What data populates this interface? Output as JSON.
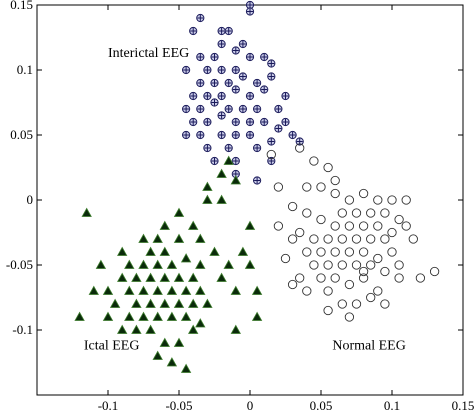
{
  "chart_data": {
    "type": "scatter",
    "xlim": [
      -0.15,
      0.15
    ],
    "ylim": [
      -0.15,
      0.15
    ],
    "xticks": [
      -0.1,
      -0.05,
      0,
      0.05,
      0.1,
      0.15
    ],
    "yticks": [
      -0.1,
      -0.05,
      0,
      0.05,
      0.1,
      0.15
    ],
    "xtick_labels": [
      "-0.1",
      "-0.05",
      "0",
      "0.05",
      "0.1",
      "0.15"
    ],
    "ytick_labels": [
      "-0.1",
      "-0.05",
      "0",
      "0.05",
      "0.1",
      "0.15"
    ],
    "grid": false,
    "annotations": [
      {
        "text": "Interictal EEG",
        "x": -0.1,
        "y": 0.11
      },
      {
        "text": "Ictal EEG",
        "x": -0.117,
        "y": -0.115
      },
      {
        "text": "Normal EEG",
        "x": 0.058,
        "y": -0.115
      }
    ],
    "series": [
      {
        "marker": "circle-plus",
        "color": "#2a2a78",
        "points": [
          [
            -0.035,
            0.14
          ],
          [
            -0.015,
            0.13
          ],
          [
            0.0,
            0.15
          ],
          [
            0.0,
            0.145
          ],
          [
            -0.02,
            0.12
          ],
          [
            -0.01,
            0.115
          ],
          [
            -0.005,
            0.12
          ],
          [
            -0.025,
            0.11
          ],
          [
            -0.03,
            0.1
          ],
          [
            -0.02,
            0.1
          ],
          [
            -0.01,
            0.1
          ],
          [
            0.0,
            0.11
          ],
          [
            0.01,
            0.11
          ],
          [
            0.015,
            0.105
          ],
          [
            -0.035,
            0.09
          ],
          [
            -0.025,
            0.09
          ],
          [
            -0.015,
            0.09
          ],
          [
            -0.005,
            0.095
          ],
          [
            0.005,
            0.09
          ],
          [
            0.015,
            0.095
          ],
          [
            -0.04,
            0.08
          ],
          [
            -0.03,
            0.08
          ],
          [
            -0.02,
            0.08
          ],
          [
            -0.01,
            0.085
          ],
          [
            0.0,
            0.08
          ],
          [
            0.01,
            0.085
          ],
          [
            -0.045,
            0.07
          ],
          [
            -0.035,
            0.07
          ],
          [
            -0.025,
            0.075
          ],
          [
            -0.015,
            0.07
          ],
          [
            -0.005,
            0.07
          ],
          [
            0.005,
            0.07
          ],
          [
            -0.04,
            0.06
          ],
          [
            -0.03,
            0.06
          ],
          [
            -0.02,
            0.065
          ],
          [
            -0.01,
            0.06
          ],
          [
            0.0,
            0.06
          ],
          [
            0.01,
            0.06
          ],
          [
            -0.045,
            0.05
          ],
          [
            -0.035,
            0.05
          ],
          [
            -0.02,
            0.05
          ],
          [
            -0.01,
            0.05
          ],
          [
            0.0,
            0.05
          ],
          [
            0.02,
            0.055
          ],
          [
            -0.03,
            0.04
          ],
          [
            -0.015,
            0.04
          ],
          [
            0.005,
            0.04
          ],
          [
            0.015,
            0.045
          ],
          [
            -0.025,
            0.03
          ],
          [
            -0.01,
            0.03
          ],
          [
            0.02,
            0.07
          ],
          [
            0.025,
            0.06
          ],
          [
            0.03,
            0.05
          ],
          [
            0.035,
            0.045
          ],
          [
            0.025,
            0.08
          ],
          [
            -0.01,
            0.02
          ],
          [
            0.005,
            0.015
          ],
          [
            0.015,
            0.03
          ],
          [
            -0.045,
            0.1
          ],
          [
            -0.02,
            0.13
          ],
          [
            -0.04,
            0.13
          ],
          [
            -0.035,
            0.11
          ]
        ]
      },
      {
        "marker": "triangle",
        "color": "#0a3a0a",
        "points": [
          [
            -0.015,
            0.03
          ],
          [
            -0.02,
            0.02
          ],
          [
            -0.01,
            0.015
          ],
          [
            -0.03,
            0.01
          ],
          [
            -0.03,
            0.0
          ],
          [
            -0.05,
            -0.01
          ],
          [
            -0.04,
            -0.02
          ],
          [
            -0.035,
            -0.03
          ],
          [
            -0.05,
            -0.03
          ],
          [
            -0.06,
            -0.04
          ],
          [
            -0.07,
            -0.04
          ],
          [
            -0.045,
            -0.045
          ],
          [
            -0.055,
            -0.05
          ],
          [
            -0.065,
            -0.05
          ],
          [
            -0.075,
            -0.05
          ],
          [
            -0.085,
            -0.05
          ],
          [
            -0.09,
            -0.06
          ],
          [
            -0.08,
            -0.06
          ],
          [
            -0.07,
            -0.06
          ],
          [
            -0.06,
            -0.06
          ],
          [
            -0.05,
            -0.06
          ],
          [
            -0.04,
            -0.06
          ],
          [
            -0.085,
            -0.07
          ],
          [
            -0.075,
            -0.07
          ],
          [
            -0.065,
            -0.07
          ],
          [
            -0.055,
            -0.07
          ],
          [
            -0.045,
            -0.07
          ],
          [
            -0.035,
            -0.07
          ],
          [
            -0.08,
            -0.08
          ],
          [
            -0.07,
            -0.08
          ],
          [
            -0.06,
            -0.08
          ],
          [
            -0.05,
            -0.08
          ],
          [
            -0.04,
            -0.08
          ],
          [
            -0.03,
            -0.08
          ],
          [
            -0.075,
            -0.09
          ],
          [
            -0.065,
            -0.09
          ],
          [
            -0.055,
            -0.09
          ],
          [
            -0.045,
            -0.09
          ],
          [
            -0.035,
            -0.095
          ],
          [
            -0.1,
            -0.07
          ],
          [
            -0.105,
            -0.05
          ],
          [
            -0.11,
            -0.07
          ],
          [
            -0.1,
            -0.09
          ],
          [
            -0.09,
            -0.1
          ],
          [
            -0.08,
            -0.1
          ],
          [
            -0.07,
            -0.1
          ],
          [
            -0.06,
            -0.11
          ],
          [
            -0.05,
            -0.11
          ],
          [
            -0.04,
            -0.1
          ],
          [
            -0.02,
            -0.06
          ],
          [
            -0.01,
            -0.07
          ],
          [
            -0.015,
            -0.05
          ],
          [
            -0.005,
            -0.04
          ],
          [
            0.0,
            -0.05
          ],
          [
            0.005,
            -0.07
          ],
          [
            -0.025,
            -0.04
          ],
          [
            -0.035,
            -0.05
          ],
          [
            -0.06,
            -0.02
          ],
          [
            -0.065,
            -0.03
          ],
          [
            -0.075,
            -0.03
          ],
          [
            -0.09,
            -0.04
          ],
          [
            -0.095,
            -0.08
          ],
          [
            -0.085,
            -0.09
          ],
          [
            -0.065,
            -0.12
          ],
          [
            -0.055,
            -0.125
          ],
          [
            -0.045,
            -0.13
          ],
          [
            0.005,
            -0.09
          ],
          [
            -0.01,
            -0.1
          ],
          [
            -0.115,
            -0.01
          ],
          [
            -0.02,
            0.0
          ],
          [
            0.0,
            -0.02
          ],
          [
            -0.12,
            -0.09
          ]
        ]
      },
      {
        "marker": "circle-open",
        "color": "#444444",
        "points": [
          [
            0.035,
            0.04
          ],
          [
            0.045,
            0.03
          ],
          [
            0.055,
            0.025
          ],
          [
            0.05,
            0.01
          ],
          [
            0.06,
            0.005
          ],
          [
            0.07,
            0.0
          ],
          [
            0.08,
            0.005
          ],
          [
            0.09,
            0.0
          ],
          [
            0.1,
            0.0
          ],
          [
            0.065,
            -0.01
          ],
          [
            0.075,
            -0.01
          ],
          [
            0.085,
            -0.01
          ],
          [
            0.095,
            -0.01
          ],
          [
            0.105,
            -0.015
          ],
          [
            0.04,
            -0.01
          ],
          [
            0.05,
            -0.015
          ],
          [
            0.06,
            -0.02
          ],
          [
            0.07,
            -0.02
          ],
          [
            0.08,
            -0.02
          ],
          [
            0.09,
            -0.02
          ],
          [
            0.1,
            -0.025
          ],
          [
            0.11,
            -0.02
          ],
          [
            0.035,
            -0.025
          ],
          [
            0.045,
            -0.03
          ],
          [
            0.055,
            -0.03
          ],
          [
            0.065,
            -0.03
          ],
          [
            0.075,
            -0.03
          ],
          [
            0.085,
            -0.03
          ],
          [
            0.095,
            -0.03
          ],
          [
            0.115,
            -0.03
          ],
          [
            0.04,
            -0.04
          ],
          [
            0.05,
            -0.04
          ],
          [
            0.06,
            -0.04
          ],
          [
            0.07,
            -0.04
          ],
          [
            0.08,
            -0.04
          ],
          [
            0.09,
            -0.045
          ],
          [
            0.1,
            -0.04
          ],
          [
            0.045,
            -0.05
          ],
          [
            0.055,
            -0.05
          ],
          [
            0.065,
            -0.05
          ],
          [
            0.075,
            -0.05
          ],
          [
            0.085,
            -0.05
          ],
          [
            0.095,
            -0.055
          ],
          [
            0.105,
            -0.05
          ],
          [
            0.05,
            -0.06
          ],
          [
            0.06,
            -0.06
          ],
          [
            0.07,
            -0.065
          ],
          [
            0.08,
            -0.06
          ],
          [
            0.09,
            -0.07
          ],
          [
            0.035,
            -0.06
          ],
          [
            0.04,
            -0.07
          ],
          [
            0.055,
            -0.07
          ],
          [
            0.065,
            -0.08
          ],
          [
            0.075,
            -0.08
          ],
          [
            0.085,
            -0.075
          ],
          [
            0.105,
            -0.06
          ],
          [
            0.12,
            -0.06
          ],
          [
            0.13,
            -0.055
          ],
          [
            0.02,
            -0.02
          ],
          [
            0.03,
            -0.03
          ],
          [
            0.025,
            -0.045
          ],
          [
            0.02,
            0.01
          ],
          [
            0.015,
            0.035
          ],
          [
            0.04,
            0.01
          ],
          [
            0.03,
            -0.005
          ],
          [
            0.11,
            0.0
          ],
          [
            0.055,
            -0.085
          ],
          [
            0.07,
            -0.09
          ],
          [
            0.095,
            -0.08
          ],
          [
            0.03,
            -0.065
          ],
          [
            0.06,
            0.015
          ],
          [
            0.08,
            -0.055
          ]
        ]
      }
    ]
  }
}
